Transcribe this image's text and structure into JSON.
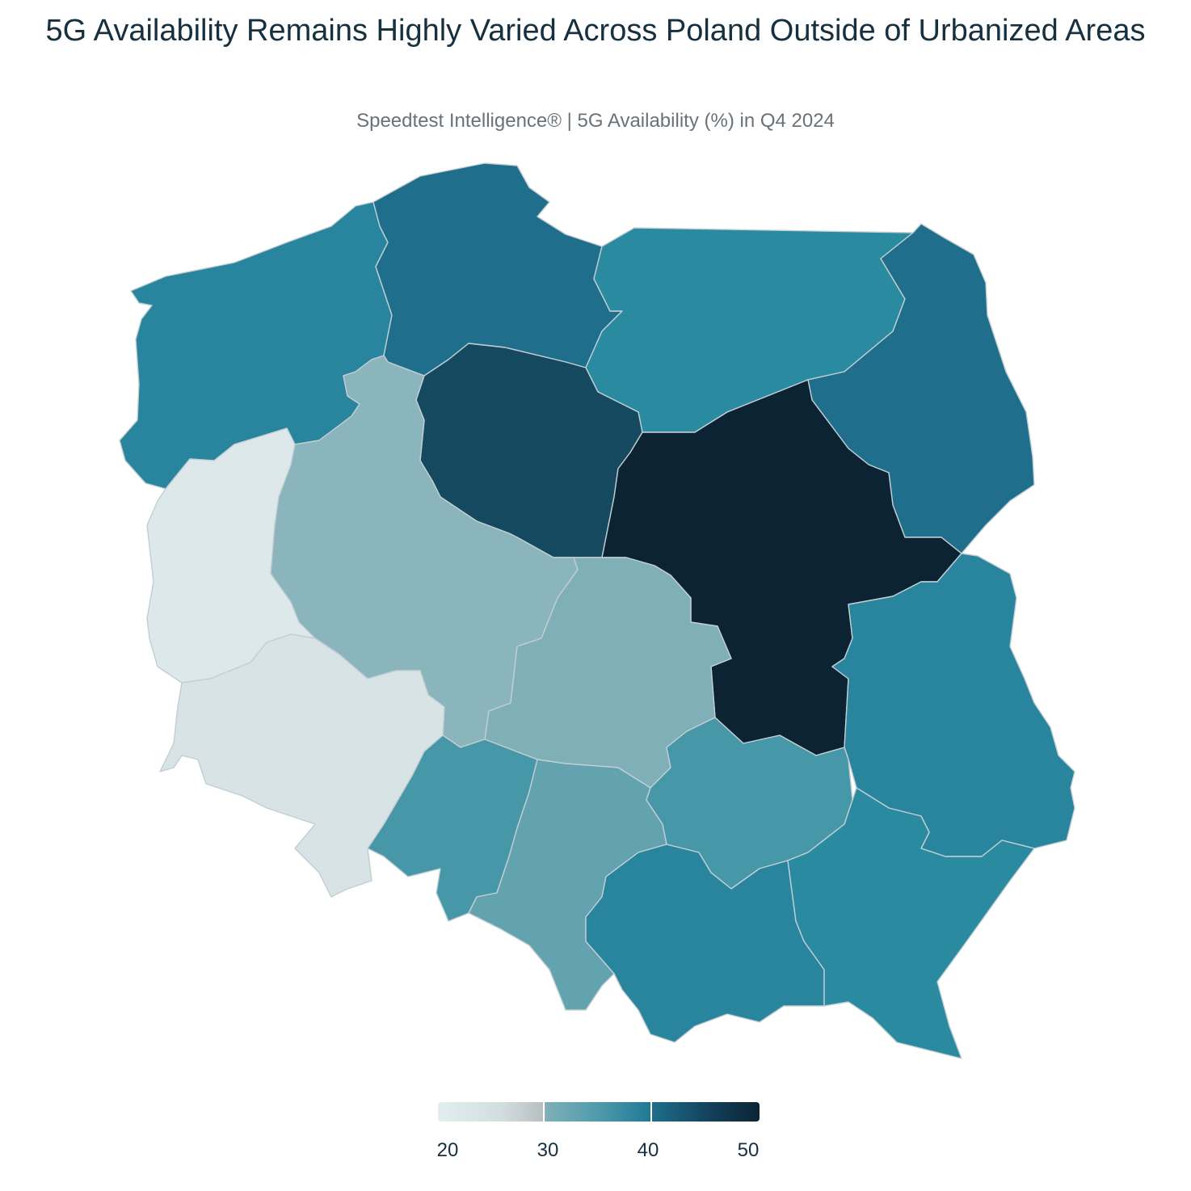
{
  "title": "5G Availability Remains Highly Varied Across Poland Outside of Urbanized Areas",
  "subtitle": "Speedtest Intelligence® | 5G Availability (%) in Q4 2024",
  "chart_data": {
    "type": "choropleth",
    "metric": "5G Availability (%)",
    "regions": [
      {
        "id": "zachodniopomorskie",
        "value": 39
      },
      {
        "id": "pomorskie",
        "value": 44
      },
      {
        "id": "warminsko-mazurskie",
        "value": 38
      },
      {
        "id": "podlaskie",
        "value": 44
      },
      {
        "id": "lubuskie",
        "value": 21
      },
      {
        "id": "wielkopolskie",
        "value": 31
      },
      {
        "id": "kujawsko-pomorskie",
        "value": 47
      },
      {
        "id": "mazowieckie",
        "value": 50
      },
      {
        "id": "lodzkie",
        "value": 32
      },
      {
        "id": "lubelskie",
        "value": 39
      },
      {
        "id": "dolnoslaskie",
        "value": 22
      },
      {
        "id": "opolskie",
        "value": 36
      },
      {
        "id": "slaskie",
        "value": 34
      },
      {
        "id": "swietokrzyskie",
        "value": 36
      },
      {
        "id": "malopolskie",
        "value": 39
      },
      {
        "id": "podkarpackie",
        "value": 38
      }
    ],
    "colorscale": {
      "min": 20,
      "max": 50,
      "ticks": [
        "20",
        "30",
        "40",
        "50"
      ],
      "stops": [
        "#e2eeef",
        "#c3ccd0",
        "#7fb0b8",
        "#2a8aa0",
        "#1f6e8c",
        "#0b2333"
      ]
    }
  }
}
